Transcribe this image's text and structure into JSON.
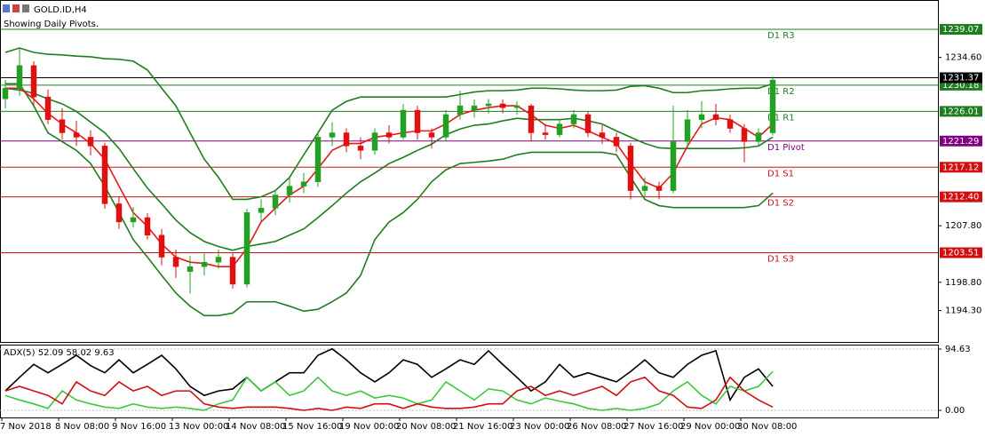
{
  "header": {
    "title": "GOLD.ID,H4",
    "subtitle": "Showing Daily Pivots."
  },
  "chart_data": [
    {
      "type": "candlestick",
      "categories": [
        "7 Nov 2018",
        null,
        null,
        null,
        "8 Nov 08:00",
        null,
        null,
        null,
        "9 Nov 16:00",
        null,
        null,
        null,
        "13 Nov 00:00",
        null,
        null,
        null,
        "14 Nov 08:00",
        null,
        null,
        null,
        "15 Nov 16:00",
        null,
        null,
        null,
        "19 Nov 00:00",
        null,
        null,
        null,
        "20 Nov 08:00",
        null,
        null,
        null,
        "21 Nov 16:00",
        null,
        null,
        null,
        "23 Nov 00:00",
        null,
        null,
        null,
        "26 Nov 08:00",
        null,
        null,
        null,
        "27 Nov 16:00",
        null,
        null,
        null,
        "29 Nov 00:00",
        null,
        null,
        null,
        "30 Nov 08:00",
        null,
        null
      ],
      "open": [
        1228.0,
        1229.7,
        1233.3,
        1228.3,
        1224.7,
        1222.6,
        1221.9,
        1220.5,
        1211.3,
        1208.4,
        1209.1,
        1206.3,
        1202.8,
        1200.5,
        1201.3,
        1202.0,
        1202.8,
        1198.5,
        1209.9,
        1210.6,
        1212.7,
        1214.1,
        1214.8,
        1221.9,
        1222.6,
        1220.5,
        1219.8,
        1222.6,
        1221.9,
        1226.2,
        1222.6,
        1221.9,
        1225.5,
        1226.2,
        1226.9,
        1227.2,
        1226.6,
        1226.9,
        1222.6,
        1222.3,
        1224.0,
        1225.5,
        1222.6,
        1221.9,
        1220.5,
        1213.4,
        1214.1,
        1213.4,
        1221.2,
        1224.7,
        1225.5,
        1224.7,
        1223.3,
        1221.2,
        1222.6
      ],
      "high": [
        1231.0,
        1236.1,
        1234.0,
        1229.5,
        1226.5,
        1224.5,
        1223.0,
        1221.0,
        1212.5,
        1210.8,
        1209.8,
        1207.3,
        1204.0,
        1203.0,
        1203.5,
        1204.0,
        1203.5,
        1210.5,
        1212.0,
        1213.4,
        1215.5,
        1216.2,
        1222.6,
        1224.3,
        1223.3,
        1221.9,
        1223.3,
        1223.8,
        1227.2,
        1226.9,
        1223.3,
        1226.2,
        1229.3,
        1227.9,
        1228.0,
        1227.9,
        1227.6,
        1227.2,
        1224.0,
        1224.7,
        1226.2,
        1226.0,
        1223.8,
        1222.6,
        1221.0,
        1215.5,
        1214.8,
        1226.9,
        1226.2,
        1227.6,
        1227.2,
        1225.5,
        1224.0,
        1223.3,
        1231.6
      ],
      "low": [
        1226.5,
        1228.5,
        1227.0,
        1224.0,
        1221.5,
        1220.5,
        1219.0,
        1210.5,
        1207.3,
        1207.5,
        1205.6,
        1201.5,
        1199.5,
        1197.0,
        1199.9,
        1201.0,
        1197.8,
        1198.0,
        1208.4,
        1209.5,
        1211.5,
        1213.0,
        1214.0,
        1220.5,
        1219.5,
        1218.4,
        1219.1,
        1220.9,
        1221.5,
        1221.5,
        1220.1,
        1221.2,
        1224.7,
        1225.0,
        1225.7,
        1225.7,
        1225.5,
        1221.2,
        1221.5,
        1221.9,
        1223.3,
        1221.9,
        1220.8,
        1219.5,
        1212.0,
        1212.4,
        1212.0,
        1213.0,
        1220.5,
        1223.3,
        1223.8,
        1222.6,
        1217.9,
        1220.5,
        1222.2
      ],
      "close": [
        1229.7,
        1233.3,
        1228.3,
        1224.7,
        1222.6,
        1221.9,
        1220.5,
        1211.3,
        1208.4,
        1209.1,
        1206.3,
        1202.8,
        1201.3,
        1201.3,
        1202.0,
        1202.8,
        1198.5,
        1209.9,
        1210.6,
        1212.7,
        1214.1,
        1214.8,
        1221.9,
        1222.6,
        1220.5,
        1219.8,
        1222.6,
        1221.9,
        1226.2,
        1222.6,
        1221.9,
        1225.5,
        1226.9,
        1226.9,
        1227.2,
        1226.6,
        1226.9,
        1222.6,
        1222.3,
        1224.0,
        1225.5,
        1222.6,
        1221.9,
        1220.5,
        1213.4,
        1214.1,
        1213.4,
        1221.2,
        1224.7,
        1225.5,
        1224.7,
        1223.3,
        1221.2,
        1222.6,
        1231.0
      ],
      "up_color": "#22a022",
      "down_color": "#e01010",
      "series": [
        {
          "color": "#1e7d1e",
          "values": [
            1235.4,
            1236.1,
            1235.4,
            1235.1,
            1235.0,
            1234.8,
            1234.7,
            1234.4,
            1234.3,
            1234.0,
            1232.6,
            1229.7,
            1226.9,
            1222.6,
            1218.4,
            1215.5,
            1212.0,
            1212.0,
            1212.4,
            1213.4,
            1215.5,
            1219.1,
            1222.6,
            1226.2,
            1227.6,
            1228.3,
            1228.3,
            1228.3,
            1228.3,
            1228.3,
            1228.3,
            1228.3,
            1228.7,
            1229.1,
            1229.3,
            1229.3,
            1229.4,
            1229.7,
            1229.7,
            1229.6,
            1229.4,
            1229.3,
            1229.3,
            1229.4,
            1230.0,
            1230.1,
            1229.7,
            1229.0,
            1229.0,
            1229.3,
            1229.4,
            1229.6,
            1229.7,
            1229.7,
            1230.4
          ]
        },
        {
          "color": "#1e7d1e",
          "values": [
            1229.7,
            1229.4,
            1228.9,
            1228.0,
            1227.2,
            1226.0,
            1224.3,
            1222.6,
            1220.1,
            1216.9,
            1213.8,
            1211.3,
            1208.7,
            1206.7,
            1205.3,
            1204.5,
            1203.9,
            1204.5,
            1204.9,
            1205.3,
            1206.3,
            1207.3,
            1209.1,
            1211.0,
            1213.0,
            1214.8,
            1216.2,
            1217.7,
            1218.7,
            1219.8,
            1220.8,
            1222.3,
            1223.2,
            1223.8,
            1224.0,
            1224.5,
            1224.9,
            1224.7,
            1224.7,
            1224.7,
            1224.9,
            1224.5,
            1224.0,
            1222.9,
            1221.9,
            1220.9,
            1220.2,
            1220.1,
            1220.1,
            1220.1,
            1220.1,
            1220.1,
            1220.2,
            1220.5,
            1221.9
          ]
        },
        {
          "color": "#1e7d1e",
          "values": [
            1230.4,
            1230.4,
            1226.9,
            1222.6,
            1221.2,
            1219.8,
            1217.7,
            1214.1,
            1209.9,
            1205.6,
            1202.8,
            1199.9,
            1197.1,
            1195.0,
            1193.5,
            1193.5,
            1193.9,
            1195.7,
            1195.7,
            1195.7,
            1195.0,
            1194.2,
            1194.5,
            1195.7,
            1197.1,
            1199.9,
            1205.6,
            1208.4,
            1209.9,
            1212.0,
            1214.8,
            1216.7,
            1217.7,
            1217.9,
            1218.1,
            1218.4,
            1219.1,
            1219.5,
            1219.5,
            1219.5,
            1219.5,
            1219.5,
            1219.5,
            1219.1,
            1215.5,
            1212.0,
            1211.0,
            1210.7,
            1210.7,
            1210.7,
            1210.7,
            1210.7,
            1210.7,
            1211.0,
            1213.0
          ]
        },
        {
          "color": "#e31b1b",
          "values": [
            1229.7,
            1229.7,
            1228.0,
            1225.7,
            1224.0,
            1222.6,
            1220.9,
            1218.4,
            1214.1,
            1209.9,
            1207.7,
            1204.9,
            1202.8,
            1202.0,
            1201.8,
            1201.3,
            1201.3,
            1204.2,
            1208.4,
            1210.6,
            1212.7,
            1214.1,
            1216.9,
            1219.8,
            1220.9,
            1220.9,
            1221.9,
            1222.2,
            1222.6,
            1222.9,
            1222.9,
            1224.0,
            1225.5,
            1226.2,
            1226.6,
            1226.9,
            1226.9,
            1225.5,
            1223.8,
            1223.3,
            1223.8,
            1222.9,
            1221.9,
            1220.9,
            1217.7,
            1214.8,
            1213.8,
            1216.2,
            1220.5,
            1224.0,
            1225.0,
            1224.7,
            1223.3,
            1221.9,
            1224.0
          ]
        }
      ],
      "pivots": [
        {
          "name": "D1 R3",
          "value": 1239.07,
          "color": "#1e7d1e"
        },
        {
          "name": "D1 R2",
          "value": 1230.18,
          "color": "#1e7d1e"
        },
        {
          "name": "D1 R1",
          "value": 1226.01,
          "color": "#1e7d1e"
        },
        {
          "name": "D1 Pivot",
          "value": 1221.29,
          "color": "#800080"
        },
        {
          "name": "D1 S1",
          "value": 1217.12,
          "color": "#d01010"
        },
        {
          "name": "D1 S2",
          "value": 1212.4,
          "label": "1212.40",
          "color": "#d01010"
        },
        {
          "name": "D1 S3",
          "value": 1203.51,
          "color": "#d01010"
        }
      ],
      "last": 1231.37,
      "ylim": [
        1189.3,
        1243.6
      ],
      "yticks": [
        {
          "value": 1234.6,
          "label": "1234.60"
        },
        {
          "value": 1207.8,
          "label": "1207.80"
        },
        {
          "value": 1198.8,
          "label": "1198.80"
        },
        {
          "value": 1194.3,
          "label": "1194.30"
        }
      ]
    },
    {
      "type": "line",
      "title": "ADX(5) 52.09 58.02 9.63",
      "series": [
        {
          "color": "#000000",
          "values": [
            30,
            51,
            71,
            58,
            71,
            85,
            69,
            58,
            78,
            58,
            71,
            85,
            64,
            37,
            23,
            30,
            33,
            51,
            30,
            44,
            58,
            58,
            85,
            95,
            78,
            58,
            44,
            58,
            78,
            71,
            51,
            64,
            78,
            71,
            92,
            71,
            51,
            30,
            44,
            71,
            51,
            58,
            51,
            44,
            60,
            78,
            58,
            51,
            71,
            85,
            92,
            16,
            51,
            64,
            37
          ]
        },
        {
          "color": "#3cc83c",
          "values": [
            23,
            16,
            10,
            3,
            30,
            16,
            10,
            5,
            3,
            10,
            5,
            3,
            5,
            3,
            0,
            10,
            16,
            51,
            30,
            44,
            23,
            30,
            51,
            30,
            23,
            30,
            19,
            23,
            19,
            10,
            16,
            44,
            30,
            16,
            33,
            30,
            16,
            10,
            19,
            14,
            10,
            3,
            0,
            3,
            0,
            3,
            10,
            30,
            44,
            23,
            10,
            37,
            30,
            37,
            60
          ]
        },
        {
          "color": "#d01010",
          "values": [
            30,
            37,
            30,
            23,
            10,
            44,
            30,
            23,
            44,
            30,
            37,
            23,
            30,
            30,
            10,
            5,
            3,
            5,
            5,
            5,
            3,
            0,
            3,
            0,
            5,
            3,
            10,
            10,
            3,
            10,
            5,
            3,
            3,
            5,
            10,
            10,
            30,
            37,
            23,
            30,
            23,
            30,
            37,
            23,
            44,
            51,
            30,
            23,
            5,
            3,
            16,
            51,
            30,
            16,
            5
          ]
        }
      ],
      "ylim": [
        -11,
        101.5
      ],
      "yticks": [
        94.63,
        {
          "value": 0,
          "label": "0.00"
        }
      ]
    }
  ]
}
